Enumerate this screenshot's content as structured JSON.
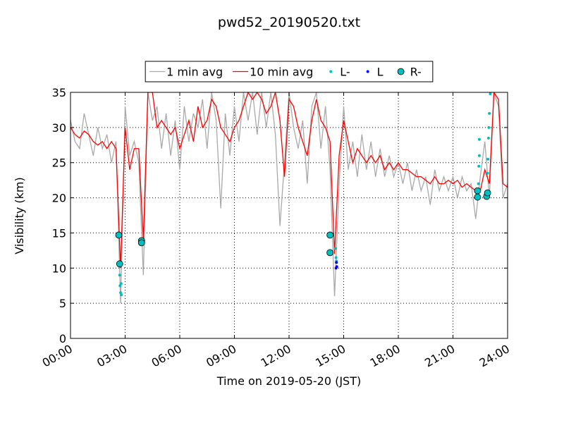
{
  "chart_data": {
    "type": "line",
    "title": "pwd52_20190520.txt",
    "x_label": "Time on 2019-05-20 (JST)",
    "y_label": "Visibility (km)",
    "xlim": [
      0,
      24
    ],
    "xticks": [
      {
        "value": 0,
        "label": "00:00"
      },
      {
        "value": 3,
        "label": "03:00"
      },
      {
        "value": 6,
        "label": "06:00"
      },
      {
        "value": 9,
        "label": "09:00"
      },
      {
        "value": 12,
        "label": "12:00"
      },
      {
        "value": 15,
        "label": "15:00"
      },
      {
        "value": 18,
        "label": "18:00"
      },
      {
        "value": 21,
        "label": "21:00"
      },
      {
        "value": 24,
        "label": "24:00"
      }
    ],
    "ylim": [
      0,
      35
    ],
    "yticks": [
      0,
      5,
      10,
      15,
      20,
      25,
      30,
      35
    ],
    "grid": true,
    "legend": "top",
    "x": [
      0,
      0.25,
      0.5,
      0.75,
      1,
      1.25,
      1.5,
      1.75,
      2,
      2.25,
      2.5,
      2.75,
      3,
      3.25,
      3.5,
      3.75,
      4,
      4.25,
      4.5,
      4.75,
      5,
      5.25,
      5.5,
      5.75,
      6,
      6.25,
      6.5,
      6.75,
      7,
      7.25,
      7.5,
      7.75,
      8,
      8.25,
      8.5,
      8.75,
      9,
      9.25,
      9.5,
      9.75,
      10,
      10.25,
      10.5,
      10.75,
      11,
      11.25,
      11.5,
      11.75,
      12,
      12.25,
      12.5,
      12.75,
      13,
      13.25,
      13.5,
      13.75,
      14,
      14.25,
      14.5,
      14.75,
      15,
      15.25,
      15.5,
      15.75,
      16,
      16.25,
      16.5,
      16.75,
      17,
      17.25,
      17.5,
      17.75,
      18,
      18.25,
      18.5,
      18.75,
      19,
      19.25,
      19.5,
      19.75,
      20,
      20.25,
      20.5,
      20.75,
      21,
      21.25,
      21.5,
      21.75,
      22,
      22.25,
      22.5,
      22.75,
      23,
      23.25,
      23.5,
      23.75,
      24
    ],
    "series": [
      {
        "name": "1 min avg",
        "type": "line",
        "color": "#a9a9a9",
        "values": [
          31,
          28,
          27,
          32,
          29,
          26,
          30,
          27,
          29,
          25,
          28,
          5,
          33,
          26,
          28,
          25,
          9,
          35,
          31,
          33,
          27,
          32,
          26,
          31,
          24,
          33,
          28,
          32,
          30,
          34,
          27,
          35,
          31,
          18.5,
          32,
          26,
          33,
          28,
          35,
          31,
          35,
          29,
          35,
          30,
          35,
          29,
          16,
          25,
          35,
          30,
          27,
          31,
          22,
          33,
          35,
          27,
          33,
          24,
          6,
          22,
          33,
          24,
          28,
          23,
          29,
          24,
          28,
          23,
          27,
          23,
          26,
          23,
          25,
          22,
          25,
          21,
          24,
          21,
          23,
          19,
          24,
          21,
          23,
          21,
          23,
          20,
          23,
          21,
          22,
          17,
          23,
          28,
          20,
          35,
          33,
          20,
          22
        ]
      },
      {
        "name": "10 min avg",
        "type": "line",
        "color": "#ff0000",
        "values": [
          30,
          29,
          28.5,
          29.5,
          29,
          28,
          27.5,
          28,
          27,
          28,
          27,
          10,
          30,
          24,
          27,
          27,
          14,
          35,
          35,
          30,
          31,
          30,
          29,
          30,
          27,
          29,
          31,
          28,
          33,
          30,
          31,
          34,
          33,
          30,
          29,
          28,
          30,
          31,
          33,
          35,
          34,
          35,
          34,
          32,
          33,
          35,
          31,
          23,
          34,
          33,
          30,
          28,
          26,
          31,
          34,
          31,
          30,
          28,
          12,
          26,
          31,
          28,
          25,
          27,
          26,
          25,
          26,
          25,
          26,
          24,
          25,
          24,
          25,
          24,
          24,
          23.5,
          23,
          23,
          22.5,
          22,
          23,
          22,
          22,
          22.5,
          22,
          22.5,
          21.5,
          22,
          21.5,
          21,
          21,
          24,
          22,
          35,
          34,
          22,
          21.5
        ]
      },
      {
        "name": "L-",
        "type": "scatter",
        "marker": "point",
        "color": "#00bfbf",
        "x": [
          2.7,
          2.72,
          2.75,
          2.78,
          2.8,
          14.55,
          14.58,
          14.6,
          22.4,
          22.42,
          22.45,
          22.45,
          22.9,
          22.92,
          22.95,
          22.97,
          23.0,
          23.05
        ],
        "values": [
          9,
          7.5,
          6.5,
          7.8,
          6.2,
          12.8,
          11.5,
          11,
          22,
          24.5,
          26,
          28.3,
          23.5,
          25.5,
          28.5,
          30,
          32,
          34.8
        ]
      },
      {
        "name": "L",
        "type": "scatter",
        "marker": "point",
        "color": "#0000ff",
        "x": [
          14.6,
          14.62,
          14.58
        ],
        "values": [
          10.8,
          10.2,
          10
        ]
      },
      {
        "name": "R-",
        "type": "scatter",
        "marker": "circle",
        "color": "#00bfbf",
        "x": [
          2.65,
          2.7,
          3.9,
          3.9,
          14.25,
          14.25,
          22.35,
          22.35,
          22.85,
          22.9
        ],
        "values": [
          14.7,
          10.6,
          13.9,
          13.6,
          14.7,
          12.2,
          21,
          20.1,
          20.2,
          20.7
        ]
      }
    ]
  }
}
